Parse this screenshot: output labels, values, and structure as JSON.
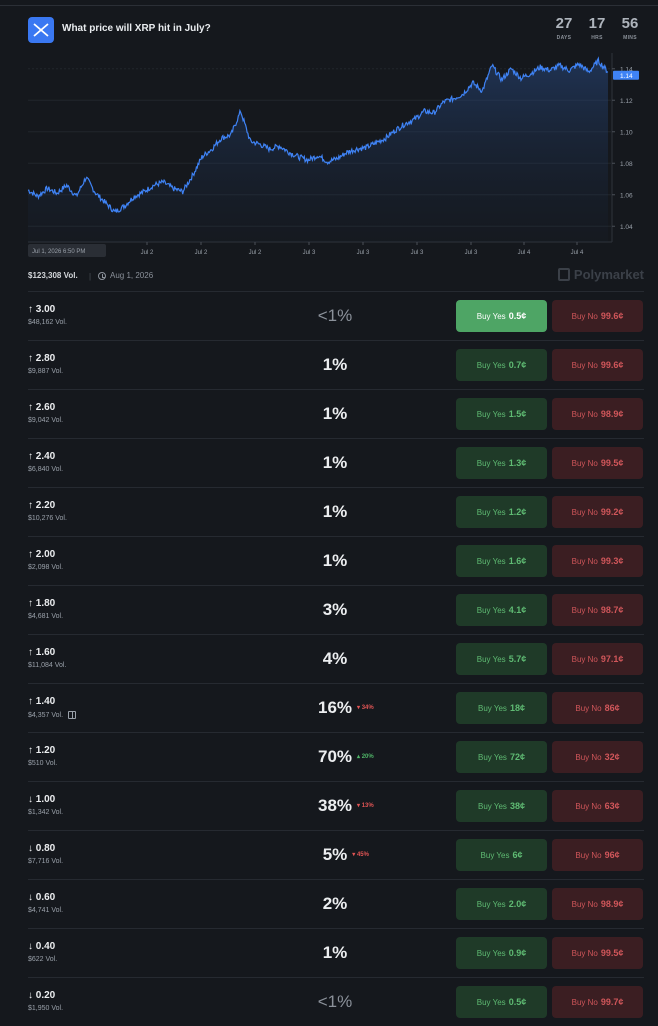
{
  "header": {
    "title": "What price will XRP hit in July?",
    "countdown": [
      {
        "value": "27",
        "label": "DAYS"
      },
      {
        "value": "17",
        "label": "HRS"
      },
      {
        "value": "56",
        "label": "MINS"
      }
    ]
  },
  "chart_data": {
    "type": "line",
    "series_color": "#3f83f5",
    "y_ticks": [
      "1.14",
      "1.12",
      "1.10",
      "1.08",
      "1.06",
      "1.04"
    ],
    "y_range": [
      1.03,
      1.15
    ],
    "current_value_label": "1.14",
    "x_ticks": [
      "Jul 2",
      "Jul 2",
      "Jul 2",
      "Jul 3",
      "Jul 3",
      "Jul 3",
      "Jul 3",
      "Jul 4",
      "Jul 4"
    ],
    "start_label": "Jul 1, 2026 6:50 PM",
    "keypoints": [
      1.063,
      1.059,
      1.064,
      1.061,
      1.066,
      1.059,
      1.071,
      1.061,
      1.055,
      1.049,
      1.053,
      1.059,
      1.062,
      1.066,
      1.068,
      1.064,
      1.062,
      1.072,
      1.084,
      1.089,
      1.096,
      1.098,
      1.113,
      1.094,
      1.092,
      1.089,
      1.091,
      1.087,
      1.084,
      1.082,
      1.085,
      1.081,
      1.083,
      1.087,
      1.089,
      1.09,
      1.093,
      1.096,
      1.101,
      1.105,
      1.108,
      1.113,
      1.112,
      1.119,
      1.121,
      1.124,
      1.131,
      1.126,
      1.142,
      1.133,
      1.14,
      1.134,
      1.137,
      1.141,
      1.139,
      1.142,
      1.139,
      1.143,
      1.138,
      1.145,
      1.138
    ]
  },
  "meta": {
    "volume": "$123,308 Vol.",
    "end_date": "Aug 1, 2026",
    "brand": "Polymarket"
  },
  "rows": [
    {
      "dir": "↑",
      "price": "3.00",
      "vol": "$48,162 Vol.",
      "pct": "<1%",
      "change": "",
      "yes": "0.5¢",
      "no": "99.6¢"
    },
    {
      "dir": "↑",
      "price": "2.80",
      "vol": "$9,887 Vol.",
      "pct": "1%",
      "change": "",
      "yes": "0.7¢",
      "no": "99.6¢"
    },
    {
      "dir": "↑",
      "price": "2.60",
      "vol": "$9,042 Vol.",
      "pct": "1%",
      "change": "",
      "yes": "1.5¢",
      "no": "98.9¢"
    },
    {
      "dir": "↑",
      "price": "2.40",
      "vol": "$6,840 Vol.",
      "pct": "1%",
      "change": "",
      "yes": "1.3¢",
      "no": "99.5¢"
    },
    {
      "dir": "↑",
      "price": "2.20",
      "vol": "$10,276 Vol.",
      "pct": "1%",
      "change": "",
      "yes": "1.2¢",
      "no": "99.2¢"
    },
    {
      "dir": "↑",
      "price": "2.00",
      "vol": "$2,098 Vol.",
      "pct": "1%",
      "change": "",
      "yes": "1.6¢",
      "no": "99.3¢"
    },
    {
      "dir": "↑",
      "price": "1.80",
      "vol": "$4,681 Vol.",
      "pct": "3%",
      "change": "",
      "yes": "4.1¢",
      "no": "98.7¢"
    },
    {
      "dir": "↑",
      "price": "1.60",
      "vol": "$11,084 Vol.",
      "pct": "4%",
      "change": "",
      "yes": "5.7¢",
      "no": "97.1¢"
    },
    {
      "dir": "↑",
      "price": "1.40",
      "vol": "$4,357 Vol.",
      "pct": "16%",
      "change": "▾ 34%",
      "change_dir": "down",
      "yes": "18¢",
      "no": "86¢",
      "gift": true
    },
    {
      "dir": "↑",
      "price": "1.20",
      "vol": "$510 Vol.",
      "pct": "70%",
      "change": "▴ 20%",
      "change_dir": "up",
      "yes": "72¢",
      "no": "32¢"
    },
    {
      "dir": "↓",
      "price": "1.00",
      "vol": "$1,342 Vol.",
      "pct": "38%",
      "change": "▾ 13%",
      "change_dir": "down",
      "yes": "38¢",
      "no": "63¢"
    },
    {
      "dir": "↓",
      "price": "0.80",
      "vol": "$7,716 Vol.",
      "pct": "5%",
      "change": "▾ 45%",
      "change_dir": "down",
      "yes": "6¢",
      "no": "96¢"
    },
    {
      "dir": "↓",
      "price": "0.60",
      "vol": "$4,741 Vol.",
      "pct": "2%",
      "change": "",
      "yes": "2.0¢",
      "no": "98.9¢"
    },
    {
      "dir": "↓",
      "price": "0.40",
      "vol": "$622 Vol.",
      "pct": "1%",
      "change": "",
      "yes": "0.9¢",
      "no": "99.5¢"
    },
    {
      "dir": "↓",
      "price": "0.20",
      "vol": "$1,950 Vol.",
      "pct": "<1%",
      "change": "",
      "yes": "0.5¢",
      "no": "99.7¢"
    }
  ],
  "labels": {
    "buy_yes": "Buy Yes",
    "buy_no": "Buy No"
  }
}
